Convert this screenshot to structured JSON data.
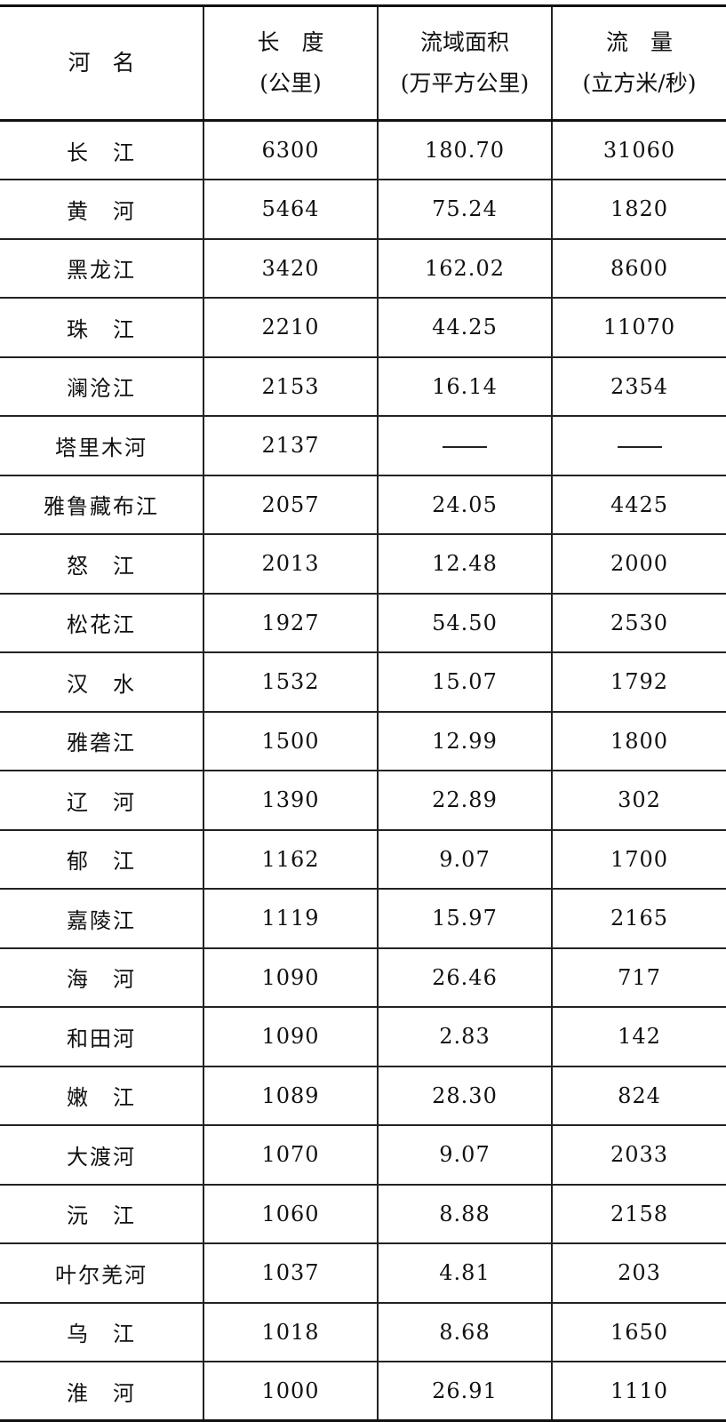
{
  "table": {
    "headers": [
      {
        "line1": "河　名",
        "line2": ""
      },
      {
        "line1": "长　度",
        "line2": "(公里)"
      },
      {
        "line1": "流域面积",
        "line2": "(万平方公里)"
      },
      {
        "line1": "流　量",
        "line2": "(立方米/秒)"
      }
    ],
    "rows": [
      {
        "name": "长　江",
        "length": "6300",
        "area": "180.70",
        "flow": "31060"
      },
      {
        "name": "黄　河",
        "length": "5464",
        "area": "75.24",
        "flow": "1820"
      },
      {
        "name": "黑龙江",
        "length": "3420",
        "area": "162.02",
        "flow": "8600"
      },
      {
        "name": "珠　江",
        "length": "2210",
        "area": "44.25",
        "flow": "11070"
      },
      {
        "name": "澜沧江",
        "length": "2153",
        "area": "16.14",
        "flow": "2354"
      },
      {
        "name": "塔里木河",
        "length": "2137",
        "area": "—",
        "flow": "—"
      },
      {
        "name": "雅鲁藏布江",
        "length": "2057",
        "area": "24.05",
        "flow": "4425"
      },
      {
        "name": "怒　江",
        "length": "2013",
        "area": "12.48",
        "flow": "2000"
      },
      {
        "name": "松花江",
        "length": "1927",
        "area": "54.50",
        "flow": "2530"
      },
      {
        "name": "汉　水",
        "length": "1532",
        "area": "15.07",
        "flow": "1792"
      },
      {
        "name": "雅砻江",
        "length": "1500",
        "area": "12.99",
        "flow": "1800"
      },
      {
        "name": "辽　河",
        "length": "1390",
        "area": "22.89",
        "flow": "302"
      },
      {
        "name": "郁　江",
        "length": "1162",
        "area": "9.07",
        "flow": "1700"
      },
      {
        "name": "嘉陵江",
        "length": "1119",
        "area": "15.97",
        "flow": "2165"
      },
      {
        "name": "海　河",
        "length": "1090",
        "area": "26.46",
        "flow": "717"
      },
      {
        "name": "和田河",
        "length": "1090",
        "area": "2.83",
        "flow": "142"
      },
      {
        "name": "嫩　江",
        "length": "1089",
        "area": "28.30",
        "flow": "824"
      },
      {
        "name": "大渡河",
        "length": "1070",
        "area": "9.07",
        "flow": "2033"
      },
      {
        "name": "沅　江",
        "length": "1060",
        "area": "8.88",
        "flow": "2158"
      },
      {
        "name": "叶尔羌河",
        "length": "1037",
        "area": "4.81",
        "flow": "203"
      },
      {
        "name": "乌　江",
        "length": "1018",
        "area": "8.68",
        "flow": "1650"
      },
      {
        "name": "淮　河",
        "length": "1000",
        "area": "26.91",
        "flow": "1110"
      }
    ]
  }
}
